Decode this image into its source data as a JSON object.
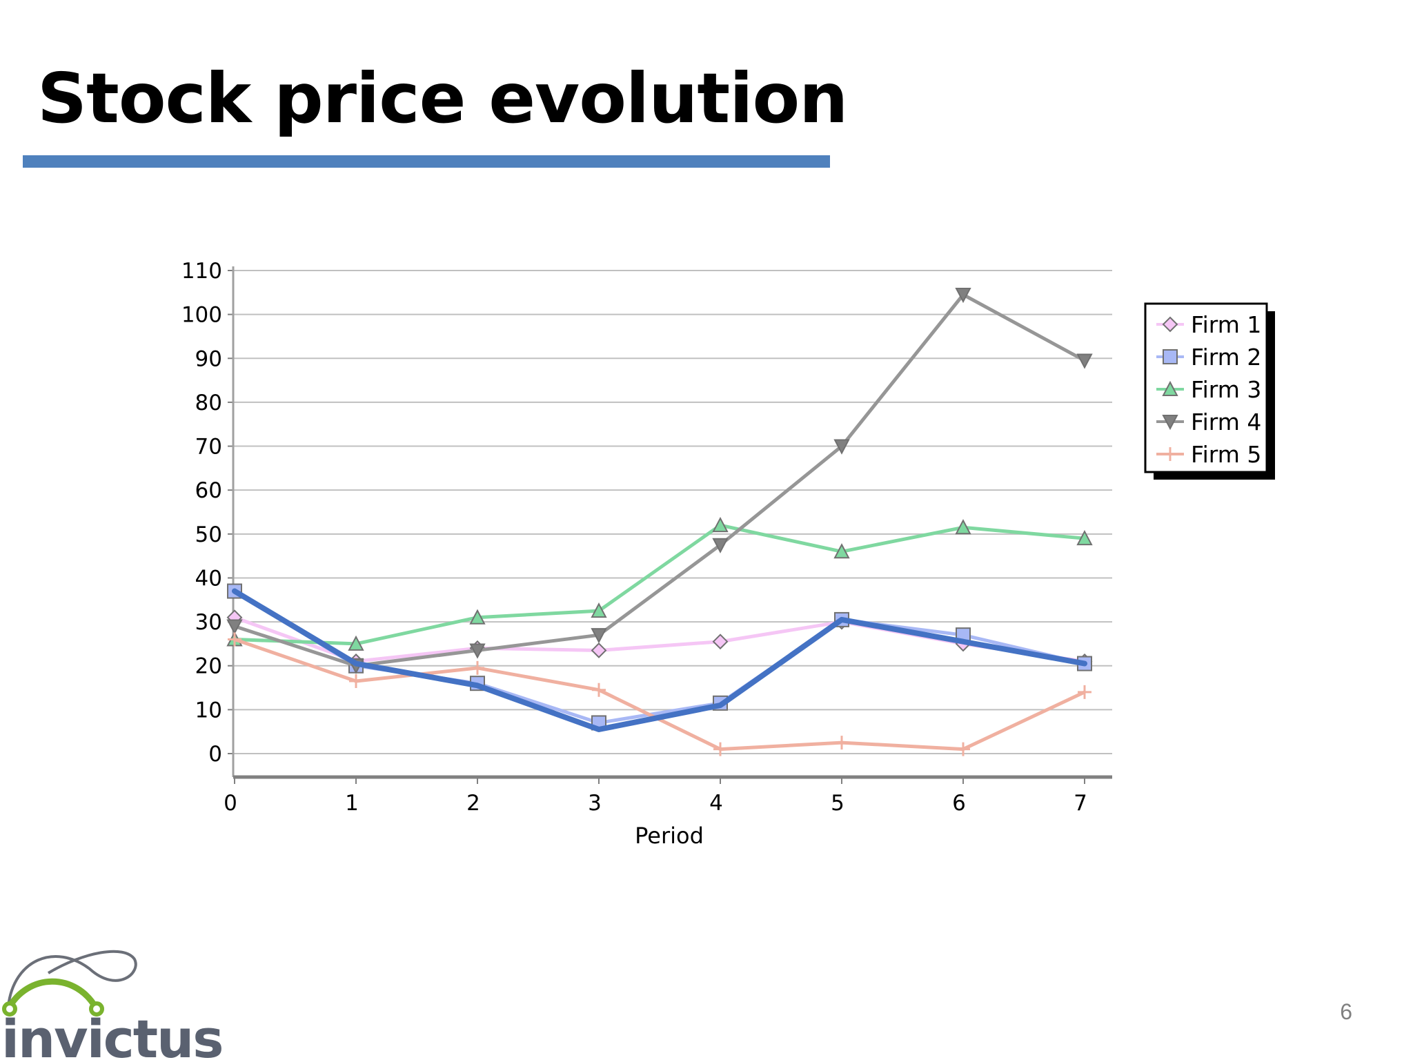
{
  "slide": {
    "title": "Stock price evolution",
    "page_number": "6",
    "accent_color": "#4f81bd"
  },
  "logo": {
    "text": "invictus",
    "text_color": "#5a6170",
    "arc_color": "#7ab32e"
  },
  "chart_data": {
    "type": "line",
    "title": "",
    "xlabel": "Period",
    "ylabel": "",
    "x": [
      0,
      1,
      2,
      3,
      4,
      5,
      6,
      7
    ],
    "xlim": [
      0,
      7
    ],
    "ylim": [
      0,
      110
    ],
    "yticks": [
      0,
      10,
      20,
      30,
      40,
      50,
      60,
      70,
      80,
      90,
      100,
      110
    ],
    "grid": true,
    "legend_position": "right",
    "series": [
      {
        "name": "Firm 1",
        "color": "#f5c6f5",
        "marker": "diamond",
        "values": [
          31,
          21,
          24,
          23.5,
          25.5,
          30,
          25,
          21
        ]
      },
      {
        "name": "Firm 2",
        "color": "#a8b8f5",
        "marker": "square",
        "values": [
          37,
          20,
          16,
          7,
          11.5,
          30.5,
          27,
          20.5
        ]
      },
      {
        "name": "Firm 3",
        "color": "#7fd8a0",
        "marker": "triangle-up",
        "values": [
          26,
          25,
          31,
          32.5,
          52,
          46,
          51.5,
          49
        ]
      },
      {
        "name": "Firm 4",
        "color": "#969696",
        "marker": "triangle-down",
        "values": [
          29,
          20,
          23.5,
          27,
          47.5,
          70,
          104.5,
          89.5
        ]
      },
      {
        "name": "Firm 5",
        "color": "#f0b0a0",
        "marker": "plus",
        "values": [
          26,
          16.5,
          19.5,
          14.5,
          1,
          2.5,
          1,
          14
        ]
      }
    ],
    "highlight": {
      "color": "#4472c4",
      "values": [
        37,
        20.5,
        15.5,
        5.5,
        11,
        30.5,
        25.5,
        20.5
      ]
    }
  }
}
